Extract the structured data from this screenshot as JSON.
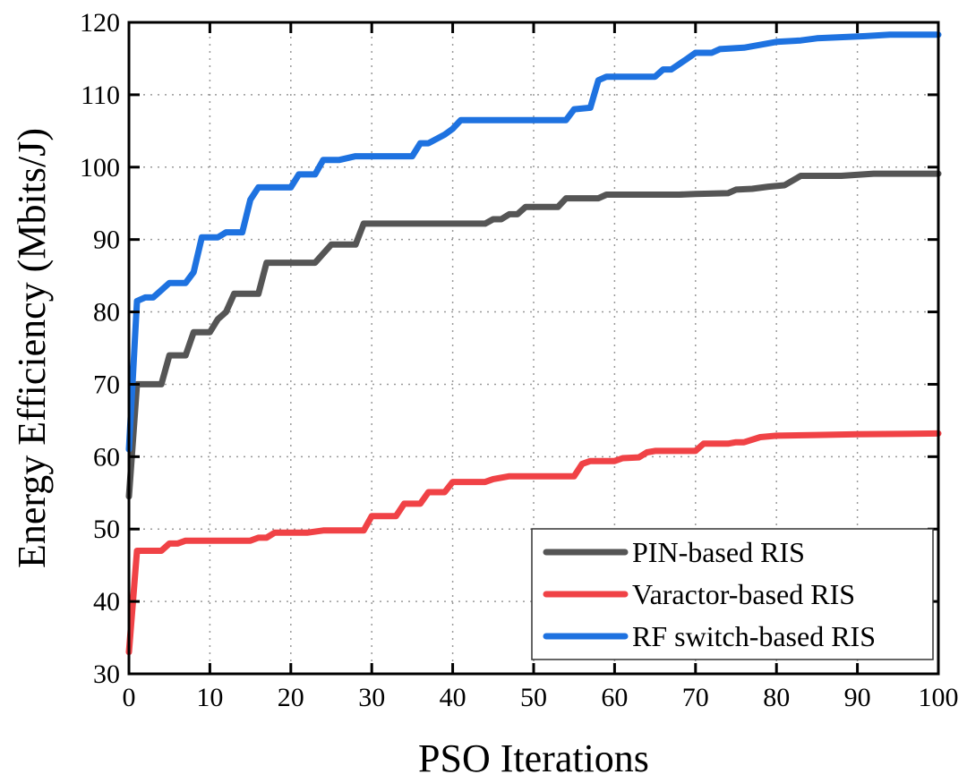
{
  "chart_data": {
    "type": "line",
    "title": "",
    "xlabel": "PSO Iterations",
    "ylabel": "Energy Efficiency (Mbits/J)",
    "xlim": [
      0,
      100
    ],
    "ylim": [
      30,
      120
    ],
    "xticks": [
      0,
      10,
      20,
      30,
      40,
      50,
      60,
      70,
      80,
      90,
      100
    ],
    "yticks": [
      30,
      40,
      50,
      60,
      70,
      80,
      90,
      100,
      110,
      120
    ],
    "grid": true,
    "legend_position": "lower right",
    "series": [
      {
        "name": "PIN-based RIS",
        "color": "#555555",
        "points": [
          [
            0,
            54.5
          ],
          [
            1,
            70
          ],
          [
            4,
            70
          ],
          [
            5,
            74
          ],
          [
            7,
            74
          ],
          [
            8,
            77.2
          ],
          [
            10,
            77.2
          ],
          [
            11,
            79
          ],
          [
            12,
            80
          ],
          [
            13,
            82.5
          ],
          [
            16,
            82.5
          ],
          [
            17,
            86.8
          ],
          [
            23,
            86.8
          ],
          [
            25,
            89.3
          ],
          [
            28,
            89.3
          ],
          [
            29,
            92.2
          ],
          [
            44,
            92.2
          ],
          [
            45,
            92.8
          ],
          [
            46,
            92.8
          ],
          [
            47,
            93.5
          ],
          [
            48,
            93.5
          ],
          [
            49,
            94.5
          ],
          [
            53,
            94.5
          ],
          [
            54,
            95.7
          ],
          [
            58,
            95.7
          ],
          [
            59,
            96.2
          ],
          [
            68,
            96.2
          ],
          [
            70,
            96.3
          ],
          [
            74,
            96.4
          ],
          [
            75,
            96.9
          ],
          [
            77,
            97
          ],
          [
            79,
            97.3
          ],
          [
            81,
            97.5
          ],
          [
            83,
            98.8
          ],
          [
            88,
            98.8
          ],
          [
            92,
            99.1
          ],
          [
            100,
            99.1
          ]
        ]
      },
      {
        "name": "Varactor-based RIS",
        "color": "#f04246",
        "points": [
          [
            0,
            33
          ],
          [
            1,
            47
          ],
          [
            4,
            47
          ],
          [
            5,
            48
          ],
          [
            6,
            48
          ],
          [
            7,
            48.4
          ],
          [
            15,
            48.4
          ],
          [
            16,
            48.8
          ],
          [
            17,
            48.8
          ],
          [
            18,
            49.5
          ],
          [
            22,
            49.5
          ],
          [
            24,
            49.8
          ],
          [
            29,
            49.8
          ],
          [
            30,
            51.8
          ],
          [
            33,
            51.8
          ],
          [
            34,
            53.5
          ],
          [
            36,
            53.5
          ],
          [
            37,
            55.1
          ],
          [
            39,
            55.1
          ],
          [
            40,
            56.5
          ],
          [
            44,
            56.5
          ],
          [
            45,
            56.9
          ],
          [
            47,
            57.3
          ],
          [
            55,
            57.3
          ],
          [
            56,
            59
          ],
          [
            57,
            59.4
          ],
          [
            60,
            59.4
          ],
          [
            61,
            59.8
          ],
          [
            63,
            59.9
          ],
          [
            64,
            60.6
          ],
          [
            65,
            60.8
          ],
          [
            70,
            60.8
          ],
          [
            71,
            61.8
          ],
          [
            74,
            61.8
          ],
          [
            75,
            62
          ],
          [
            76,
            62
          ],
          [
            78,
            62.7
          ],
          [
            80,
            62.9
          ],
          [
            85,
            63
          ],
          [
            90,
            63.1
          ],
          [
            100,
            63.2
          ]
        ]
      },
      {
        "name": "RF switch-based RIS",
        "color": "#1e72e0",
        "points": [
          [
            0,
            61
          ],
          [
            1,
            81.5
          ],
          [
            2,
            82
          ],
          [
            3,
            82
          ],
          [
            4,
            83
          ],
          [
            5,
            84
          ],
          [
            7,
            84
          ],
          [
            8,
            85.5
          ],
          [
            9,
            90.3
          ],
          [
            11,
            90.3
          ],
          [
            12,
            91
          ],
          [
            14,
            91
          ],
          [
            15,
            95.5
          ],
          [
            16,
            97.2
          ],
          [
            20,
            97.2
          ],
          [
            21,
            99
          ],
          [
            23,
            99
          ],
          [
            24,
            101
          ],
          [
            26,
            101
          ],
          [
            28,
            101.5
          ],
          [
            35,
            101.5
          ],
          [
            36,
            103.3
          ],
          [
            37,
            103.3
          ],
          [
            39,
            104.5
          ],
          [
            40,
            105.3
          ],
          [
            41,
            106.5
          ],
          [
            54,
            106.5
          ],
          [
            55,
            108
          ],
          [
            57,
            108.2
          ],
          [
            58,
            112
          ],
          [
            59,
            112.5
          ],
          [
            65,
            112.5
          ],
          [
            66,
            113.5
          ],
          [
            67,
            113.5
          ],
          [
            69,
            115
          ],
          [
            70,
            115.8
          ],
          [
            72,
            115.8
          ],
          [
            73,
            116.3
          ],
          [
            76,
            116.5
          ],
          [
            77,
            116.7
          ],
          [
            80,
            117.3
          ],
          [
            83,
            117.5
          ],
          [
            85,
            117.8
          ],
          [
            91,
            118.1
          ],
          [
            94,
            118.3
          ],
          [
            100,
            118.3
          ]
        ]
      }
    ]
  },
  "axes": {
    "xlabel": "PSO Iterations",
    "ylabel": "Energy Efficiency (Mbits/J)"
  },
  "legend": {
    "items": [
      {
        "label": "PIN-based RIS",
        "color": "#555555"
      },
      {
        "label": "Varactor-based RIS",
        "color": "#f04246"
      },
      {
        "label": "RF switch-based RIS",
        "color": "#1e72e0"
      }
    ]
  }
}
